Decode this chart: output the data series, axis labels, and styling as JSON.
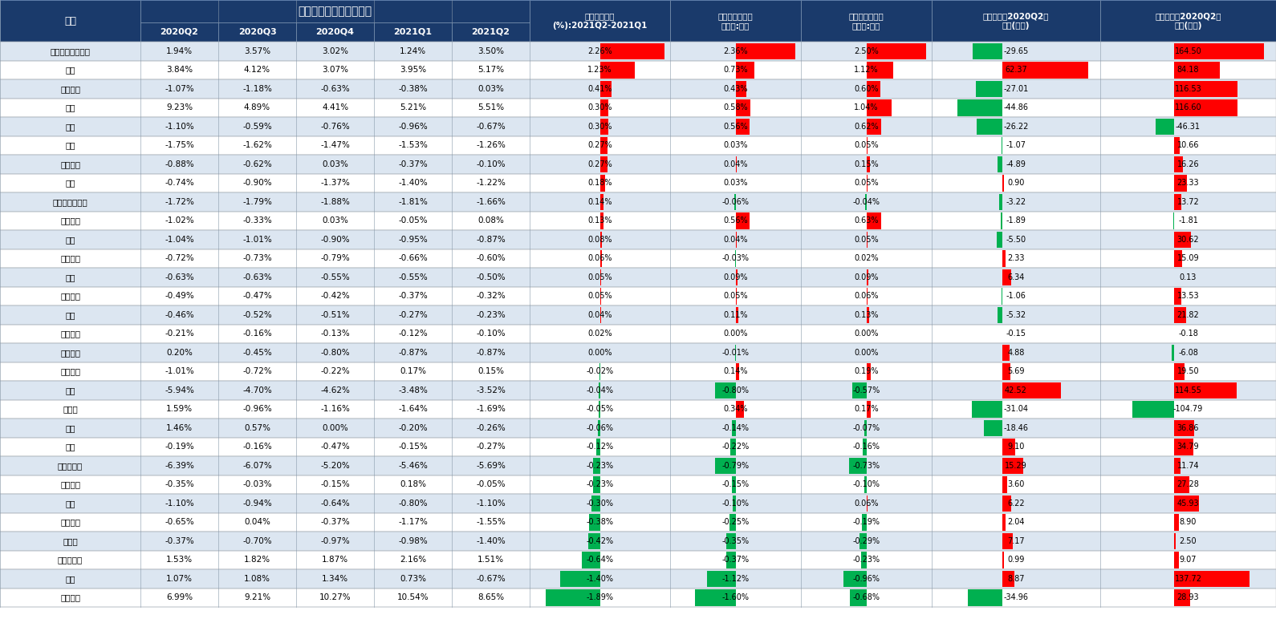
{
  "header_bg": "#1a3a6b",
  "header_text_color": "#ffffff",
  "green_color": "#00b050",
  "red_color": "#ff0000",
  "industries": [
    "電力設備及新能源",
    "電子",
    "基礎化工",
    "醫藥",
    "汽車",
    "建筑",
    "有色金屬",
    "通信",
    "電力及公用事業",
    "國防軍工",
    "鋼鐵",
    "農林牧漁",
    "綜合",
    "紡織服裝",
    "煤炭",
    "綜合金融",
    "商貿零售",
    "石油石化",
    "銀行",
    "計算機",
    "傳媒",
    "建材",
    "非銀行金融",
    "輕工制造",
    "機械",
    "交通運輸",
    "房地產",
    "消費者服務",
    "家電",
    "食品飲料"
  ],
  "col1_2020Q2": [
    "1.94%",
    "3.84%",
    "-1.07%",
    "9.23%",
    "-1.10%",
    "-1.75%",
    "-0.88%",
    "-0.74%",
    "-1.72%",
    "-1.02%",
    "-1.04%",
    "-0.72%",
    "-0.63%",
    "-0.49%",
    "-0.46%",
    "-0.21%",
    "0.20%",
    "-1.01%",
    "-5.94%",
    "1.59%",
    "1.46%",
    "-0.19%",
    "-6.39%",
    "-0.35%",
    "-1.10%",
    "-0.65%",
    "-0.37%",
    "1.53%",
    "1.07%",
    "6.99%"
  ],
  "col2_2020Q3": [
    "3.57%",
    "4.12%",
    "-1.18%",
    "4.89%",
    "-0.59%",
    "-1.62%",
    "-0.62%",
    "-0.90%",
    "-1.79%",
    "-0.33%",
    "-1.01%",
    "-0.73%",
    "-0.63%",
    "-0.47%",
    "-0.52%",
    "-0.16%",
    "-0.45%",
    "-0.72%",
    "-4.70%",
    "-0.96%",
    "0.57%",
    "-0.16%",
    "-6.07%",
    "-0.03%",
    "-0.94%",
    "0.04%",
    "-0.70%",
    "1.82%",
    "1.08%",
    "9.21%"
  ],
  "col3_2020Q4": [
    "3.02%",
    "3.07%",
    "-0.63%",
    "4.41%",
    "-0.76%",
    "-1.47%",
    "0.03%",
    "-1.37%",
    "-1.88%",
    "0.03%",
    "-0.90%",
    "-0.79%",
    "-0.55%",
    "-0.42%",
    "-0.51%",
    "-0.13%",
    "-0.80%",
    "-0.22%",
    "-4.62%",
    "-1.16%",
    "0.00%",
    "-0.47%",
    "-5.20%",
    "-0.15%",
    "-0.64%",
    "-0.37%",
    "-0.97%",
    "1.87%",
    "1.34%",
    "10.27%"
  ],
  "col4_2021Q1": [
    "1.24%",
    "3.95%",
    "-0.38%",
    "5.21%",
    "-0.96%",
    "-1.53%",
    "-0.37%",
    "-1.40%",
    "-1.81%",
    "-0.05%",
    "-0.95%",
    "-0.66%",
    "-0.55%",
    "-0.37%",
    "-0.27%",
    "-0.12%",
    "-0.87%",
    "0.17%",
    "-3.48%",
    "-1.64%",
    "-0.20%",
    "-0.15%",
    "-5.46%",
    "0.18%",
    "-0.80%",
    "-1.17%",
    "-0.98%",
    "2.16%",
    "0.73%",
    "10.54%"
  ],
  "col5_2021Q2": [
    "3.50%",
    "5.17%",
    "0.03%",
    "5.51%",
    "-0.67%",
    "-1.26%",
    "-0.10%",
    "-1.22%",
    "-1.66%",
    "0.08%",
    "-0.87%",
    "-0.60%",
    "-0.50%",
    "-0.32%",
    "-0.23%",
    "-0.10%",
    "-0.87%",
    "0.15%",
    "-3.52%",
    "-1.69%",
    "-0.26%",
    "-0.27%",
    "-5.69%",
    "-0.05%",
    "-1.10%",
    "-1.55%",
    "-1.40%",
    "1.51%",
    "-0.67%",
    "8.65%"
  ],
  "col6_chg": [
    "2.26%",
    "1.23%",
    "0.41%",
    "0.30%",
    "0.30%",
    "0.27%",
    "0.27%",
    "0.18%",
    "0.14%",
    "0.13%",
    "0.08%",
    "0.06%",
    "0.05%",
    "0.05%",
    "0.04%",
    "0.02%",
    "0.00%",
    "-0.02%",
    "-0.04%",
    "-0.05%",
    "-0.06%",
    "-0.12%",
    "-0.23%",
    "-0.23%",
    "-0.30%",
    "-0.38%",
    "-0.42%",
    "-0.64%",
    "-1.40%",
    "-1.89%"
  ],
  "col7_relative": [
    "2.36%",
    "0.73%",
    "0.43%",
    "0.58%",
    "0.56%",
    "0.03%",
    "0.04%",
    "0.03%",
    "-0.06%",
    "0.56%",
    "0.04%",
    "-0.03%",
    "0.09%",
    "0.05%",
    "0.11%",
    "0.00%",
    "-0.01%",
    "0.14%",
    "-0.80%",
    "0.34%",
    "-0.14%",
    "-0.22%",
    "-0.79%",
    "-0.15%",
    "-0.10%",
    "-0.25%",
    "-0.35%",
    "-0.37%",
    "-1.12%",
    "-1.60%"
  ],
  "col8_absolute": [
    "2.50%",
    "1.12%",
    "0.60%",
    "1.04%",
    "0.62%",
    "0.05%",
    "0.15%",
    "0.05%",
    "-0.04%",
    "0.63%",
    "0.05%",
    "0.02%",
    "0.09%",
    "0.06%",
    "0.13%",
    "0.00%",
    "0.00%",
    "0.19%",
    "-0.57%",
    "0.17%",
    "-0.07%",
    "-0.16%",
    "-0.73%",
    "-0.10%",
    "0.06%",
    "-0.19%",
    "-0.29%",
    "-0.23%",
    "-0.96%",
    "-0.68%"
  ],
  "col9_foreign_trade": [
    -29.65,
    62.37,
    -27.01,
    -44.86,
    -26.22,
    -1.07,
    -4.89,
    0.9,
    -3.22,
    -1.89,
    -5.5,
    2.33,
    6.34,
    -1.06,
    -5.32,
    -0.15,
    4.88,
    5.69,
    42.52,
    -31.04,
    -18.46,
    9.1,
    15.29,
    3.6,
    6.22,
    2.04,
    7.17,
    0.99,
    8.87,
    -34.96
  ],
  "col10_foreign_alloc": [
    164.5,
    84.18,
    116.53,
    116.6,
    -46.31,
    10.66,
    16.26,
    23.33,
    13.72,
    -1.81,
    30.62,
    15.09,
    0.13,
    13.53,
    21.82,
    -0.18,
    -6.08,
    19.5,
    114.55,
    -104.79,
    36.86,
    34.79,
    11.74,
    27.28,
    45.93,
    8.9,
    2.5,
    9.07,
    137.72,
    28.93
  ],
  "col9_text": [
    "-29.65",
    "62.37",
    "-27.01",
    "-44.86",
    "-26.22",
    "-1.07",
    "-4.89",
    "0.90",
    "-3.22",
    "-1.89",
    "-5.50",
    "2.33",
    "6.34",
    "-1.06",
    "-5.32",
    "-0.15",
    "4.88",
    "5.69",
    "42.52",
    "-31.04",
    "-18.46",
    "9.10",
    "15.29",
    "3.60",
    "6.22",
    "2.04",
    "7.17",
    "0.99",
    "8.87",
    "-34.96"
  ],
  "col10_text": [
    "164.50",
    "84.18",
    "116.53",
    "116.60",
    "-46.31",
    "10.66",
    "16.26",
    "23.33",
    "13.72",
    "-1.81",
    "30.62",
    "15.09",
    "0.13",
    "13.53",
    "21.82",
    "-0.18",
    "-6.08",
    "19.50",
    "114.55",
    "-104.79",
    "36.86",
    "34.79",
    "11.74",
    "27.28",
    "45.93",
    "8.90",
    "2.50",
    "9.07",
    "137.72",
    "28.93"
  ]
}
